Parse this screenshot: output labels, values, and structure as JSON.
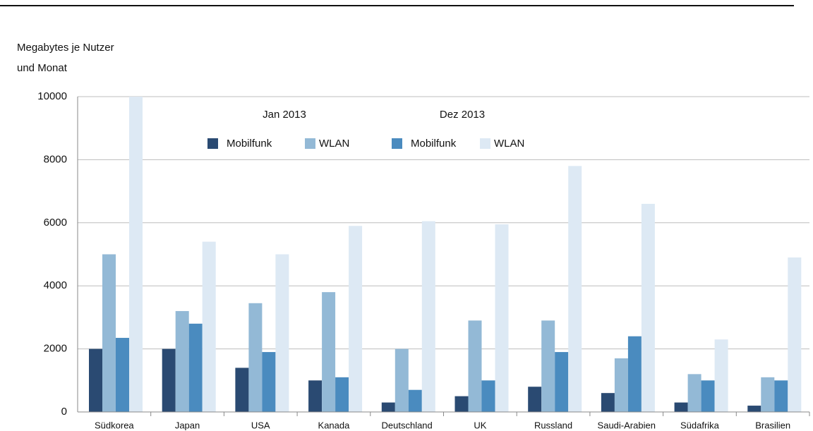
{
  "chart_data": {
    "type": "bar",
    "y_label_lines": [
      "Megabytes je Nutzer",
      "und Monat"
    ],
    "legend_titles": [
      "Jan 2013",
      "Dez 2013"
    ],
    "categories": [
      "Südkorea",
      "Japan",
      "USA",
      "Kanada",
      "Deutschland",
      "UK",
      "Russland",
      "Saudi-Arabien",
      "Südafrika",
      "Brasilien"
    ],
    "series": [
      {
        "name": "Mobilfunk",
        "color": "#2a4a72",
        "values": [
          2000,
          2000,
          1400,
          1000,
          300,
          500,
          800,
          600,
          300,
          200
        ]
      },
      {
        "name": "WLAN",
        "color": "#93b9d6",
        "values": [
          5000,
          3200,
          3450,
          3800,
          2000,
          2900,
          2900,
          1700,
          1200,
          1100
        ]
      },
      {
        "name": "Mobilfunk",
        "color": "#4a8bbf",
        "values": [
          2350,
          2800,
          1900,
          1100,
          700,
          1000,
          1900,
          2400,
          1000,
          1000
        ]
      },
      {
        "name": "WLAN",
        "color": "#dde9f4",
        "values": [
          10000,
          5400,
          5000,
          5900,
          6050,
          5950,
          7800,
          6600,
          2300,
          4900
        ]
      }
    ],
    "ylim": [
      0,
      10000
    ],
    "yticks": [
      0,
      2000,
      4000,
      6000,
      8000,
      10000
    ],
    "grid": true
  }
}
